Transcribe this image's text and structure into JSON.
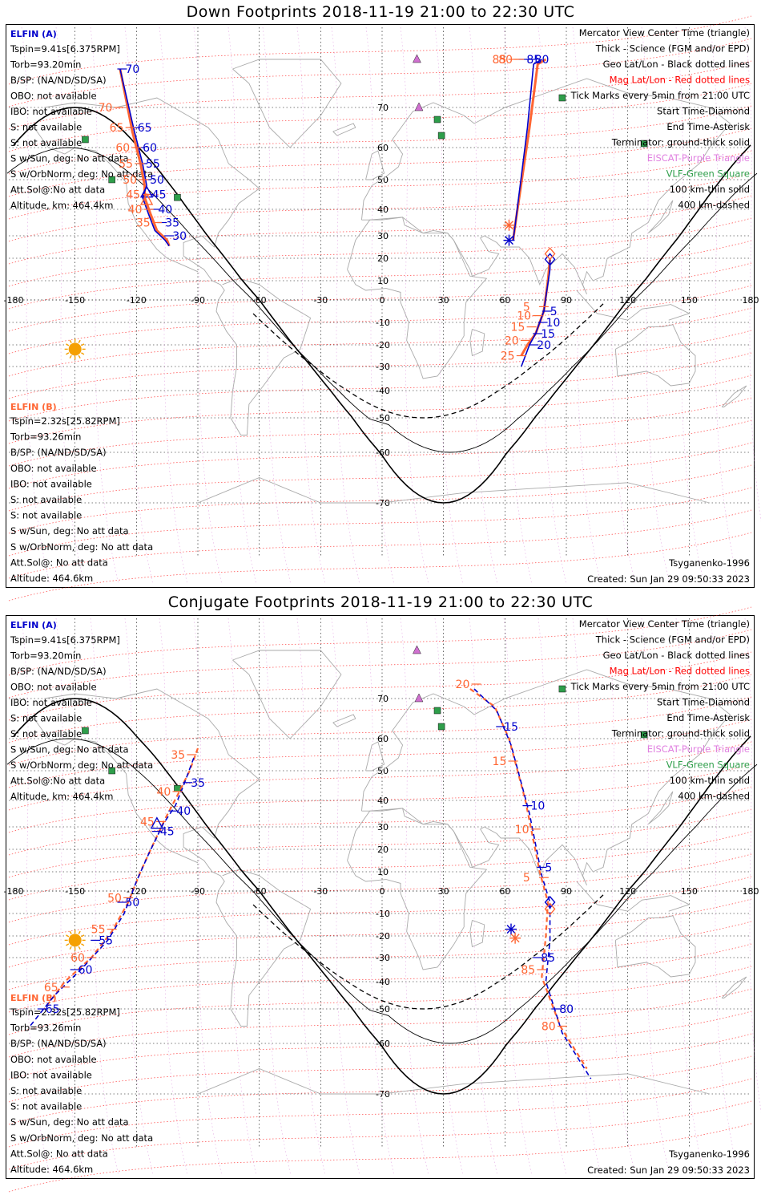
{
  "panels": [
    {
      "id": "top",
      "title": "Down Footprints 2018-11-19 21:00 to 22:30 UTC",
      "sc_a": "ELFIN (A)",
      "a_info": [
        "Tspin=9.41s[6.375RPM]",
        "Torb=93.20min",
        "B/SP: (NA/ND/SD/SA)",
        "OBO: not available",
        "IBO: not available",
        "S: not available",
        "S: not available",
        "S w/Sun, deg: No att data",
        "S w/OrbNorm, deg: No att data",
        "Att.Sol@:No att data",
        "Altitude, km: 464.4km"
      ],
      "sc_b": "ELFIN (B)",
      "b_info": [
        "Tspin=2.32s[25.82RPM]",
        "Torb=93.26min",
        "B/SP: (NA/ND/SD/SA)",
        "OBO: not available",
        "IBO: not available",
        "S: not available",
        "S: not available",
        "S w/Sun, deg: No att data",
        "S w/OrbNorm, deg: No att data",
        "Att.Sol@: No att data",
        "Altitude: 464.6km"
      ],
      "a_track": [
        [
          -128,
          78
        ],
        [
          -121,
          64
        ],
        [
          -117,
          55
        ],
        [
          -115,
          48
        ],
        [
          -117,
          44
        ],
        [
          -114,
          38
        ],
        [
          -111,
          32
        ],
        [
          -106,
          28
        ],
        [
          -104,
          25.5
        ]
      ],
      "b_track": [
        [
          -128,
          78
        ],
        [
          -122,
          64
        ],
        [
          -118,
          55
        ],
        [
          -116,
          48
        ],
        [
          -116,
          44
        ],
        [
          -113,
          38
        ],
        [
          -110,
          32
        ],
        [
          -105,
          28
        ],
        [
          -104,
          25.5
        ]
      ],
      "a_ticks": [
        {
          "lon": -127,
          "lat": 78,
          "label": "70"
        },
        {
          "lon": -121,
          "lat": 65,
          "label": "65"
        },
        {
          "lon": -118.5,
          "lat": 60,
          "label": "60"
        },
        {
          "lon": -117,
          "lat": 55,
          "label": "55"
        },
        {
          "lon": -115,
          "lat": 50,
          "label": "50"
        },
        {
          "lon": -114,
          "lat": 45,
          "label": "45"
        },
        {
          "lon": -111,
          "lat": 40,
          "label": "40"
        },
        {
          "lon": -107.5,
          "lat": 35,
          "label": "35"
        },
        {
          "lon": -104,
          "lat": 30,
          "label": "30"
        }
      ],
      "b_ticks": [
        {
          "lon": -128.5,
          "lat": 70,
          "label": "70"
        },
        {
          "lon": -123,
          "lat": 65,
          "label": "65"
        },
        {
          "lon": -120,
          "lat": 60,
          "label": "60"
        },
        {
          "lon": -118.5,
          "lat": 55,
          "label": "55"
        },
        {
          "lon": -116.5,
          "lat": 50,
          "label": "50"
        },
        {
          "lon": -115,
          "lat": 45,
          "label": "45"
        },
        {
          "lon": -114,
          "lat": 40,
          "label": "40"
        },
        {
          "lon": -110,
          "lat": 35,
          "label": "35"
        }
      ],
      "a2_track": [
        [
          78,
          85
        ],
        [
          74,
          79
        ],
        [
          71,
          65
        ],
        [
          65,
          34
        ],
        [
          64,
          28
        ]
      ],
      "b2_track": [
        [
          80,
          85
        ],
        [
          76,
          79
        ],
        [
          72,
          65
        ],
        [
          65,
          34
        ],
        [
          64,
          28
        ]
      ],
      "a2_ticks": [
        {
          "lon": 73,
          "lat": 80,
          "label": "80"
        },
        {
          "lon": 69,
          "lat": 85,
          "label": "85"
        }
      ],
      "b2_ticks": [
        {
          "lon": 67,
          "lat": 80,
          "label": "80"
        },
        {
          "lon": 64,
          "lat": 85,
          "label": "85"
        }
      ],
      "a3_track": [
        [
          82,
          19.5
        ],
        [
          82,
          15
        ],
        [
          79,
          -5
        ],
        [
          77,
          -10
        ],
        [
          75,
          -15
        ],
        [
          72,
          -20
        ],
        [
          70,
          -25
        ],
        [
          68,
          -30
        ]
      ],
      "b3_track": [
        [
          82,
          19.5
        ],
        [
          81,
          10
        ],
        [
          79,
          -5
        ],
        [
          77,
          -10
        ],
        [
          75,
          -15
        ],
        [
          71,
          -20
        ],
        [
          68,
          -25
        ]
      ],
      "a3_ticks": [
        {
          "lon": 80.5,
          "lat": -5,
          "label": "5"
        },
        {
          "lon": 78.5,
          "lat": -10,
          "label": "10"
        },
        {
          "lon": 76,
          "lat": -15,
          "label": "15"
        },
        {
          "lon": 74,
          "lat": -20,
          "label": "20"
        }
      ],
      "b3_ticks": [
        {
          "lon": 79,
          "lat": -3,
          "label": "5"
        },
        {
          "lon": 76,
          "lat": -7,
          "label": "10"
        },
        {
          "lon": 73,
          "lat": -12,
          "label": "15"
        },
        {
          "lon": 70,
          "lat": -18,
          "label": "20"
        },
        {
          "lon": 68,
          "lat": -25,
          "label": "25"
        }
      ]
    },
    {
      "id": "bottom",
      "title": "Conjugate Footprints 2018-11-19 21:00 to 22:30 UTC",
      "sc_a": "ELFIN (A)",
      "a_info": [
        "Tspin=9.41s[6.375RPM]",
        "Torb=93.20min",
        "B/SP: (NA/ND/SD/SA)",
        "OBO: not available",
        "IBO: not available",
        "S: not available",
        "S: not available",
        "S w/Sun, deg: No att data",
        "S w/OrbNorm, deg: No att data",
        "Att.Sol@:No att data",
        "Altitude, km: 464.4km"
      ],
      "sc_b": "ELFIN (B)",
      "b_info": [
        "Tspin=2.32s[25.82RPM]",
        "Torb=93.26min",
        "B/SP: (NA/ND/SD/SA)",
        "OBO: not available",
        "IBO: not available",
        "S: not available",
        "S: not available",
        "S w/Sun, deg: No att data",
        "S w/OrbNorm, deg: No att data",
        "Att.Sol@: No att data",
        "Altitude: 464.6km"
      ]
    }
  ],
  "common": {
    "legend": [
      {
        "text": "Mercator View Center Time (triangle)",
        "color": "#000000"
      },
      {
        "text": "Thick - Science (FGM and/or EPD)",
        "color": "#000000"
      },
      {
        "text": "Geo Lat/Lon - Black dotted lines",
        "color": "#000000"
      },
      {
        "text": "Mag Lat/Lon - Red dotted lines",
        "color": "#ff0000"
      },
      {
        "text": "Tick Marks every 5min from 21:00 UTC",
        "color": "#000000"
      },
      {
        "text": "Start Time-Diamond",
        "color": "#000000"
      },
      {
        "text": "End Time-Asterisk",
        "color": "#000000"
      },
      {
        "text": "Terminator: ground-thick solid",
        "color": "#000000"
      },
      {
        "text": "EISCAT-Purple Triangle",
        "color": "#e080e0"
      },
      {
        "text": "VLF-Green Square",
        "color": "#2e9e4a"
      },
      {
        "text": "100 km-thin solid",
        "color": "#000000"
      },
      {
        "text": "400 km-dashed",
        "color": "#000000"
      }
    ],
    "model": "Tsyganenko-1996",
    "created": "Created: Sun Jan 29 09:50:33 2023",
    "lon_labels": [
      "-180",
      "-150",
      "-120",
      "-90",
      "-60",
      "-30",
      "0",
      "30",
      "60",
      "90",
      "120",
      "150",
      "180"
    ],
    "lat_labels": [
      "70",
      "60",
      "50",
      "40",
      "30",
      "20",
      "10",
      "0",
      "-10",
      "-20",
      "-30",
      "-40",
      "-50",
      "-60",
      "-70"
    ],
    "colors": {
      "elfin_a": "#0000cc",
      "elfin_b": "#ff6633",
      "mag_grid": "#ff0000",
      "geo_grid": "#000000",
      "eiscat": "#d070d0",
      "vlf": "#2e9e4a",
      "sun": "#f5a000",
      "coast": "#aaaaaa"
    }
  }
}
